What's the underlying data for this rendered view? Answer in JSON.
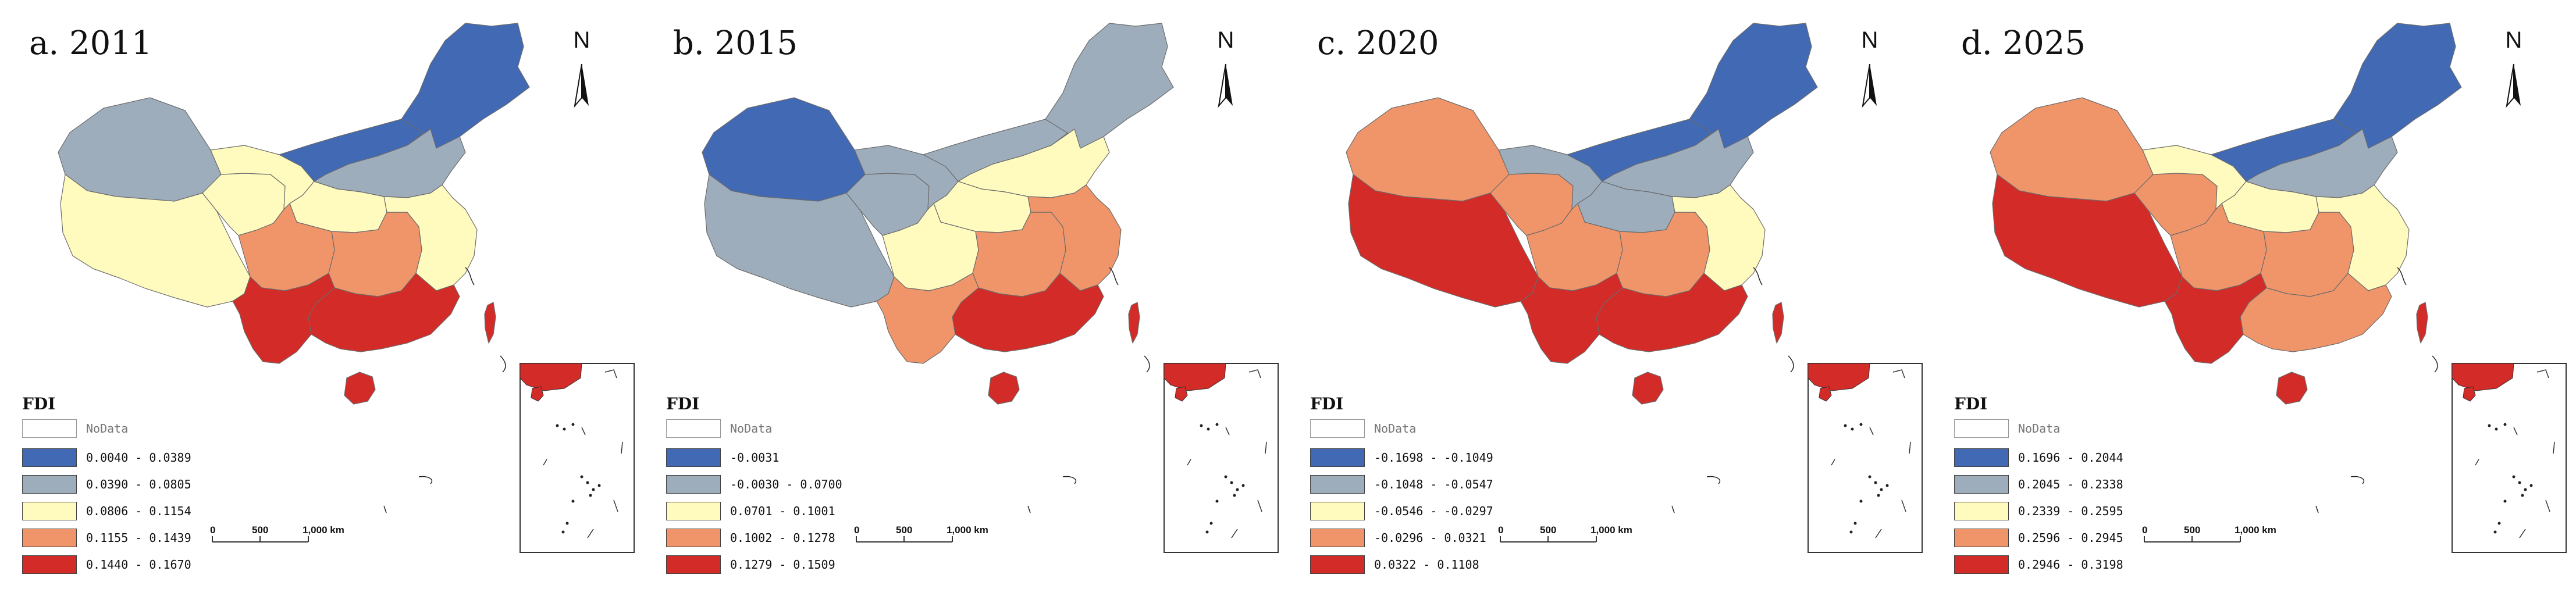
{
  "legend_title": "FDI",
  "nodata_label": "NoData",
  "scale_labels": [
    "0",
    "500",
    "1,000 km"
  ],
  "north_label": "N",
  "class_colors": [
    "#4169B4",
    "#9EADBC",
    "#FFFBBF",
    "#F0956A",
    "#D32B27"
  ],
  "nodata_color": "#FFFFFF",
  "panels": [
    {
      "title": "a. 2011",
      "legend": [
        "0.0040 - 0.0389",
        "0.0390 - 0.0805",
        "0.0806 - 0.1154",
        "0.1155 - 0.1439",
        "0.1440 - 0.1670"
      ],
      "regions": {
        "northeast": 0,
        "north": 1,
        "inner_mongolia": 0,
        "xinjiang": 1,
        "gansu": 2,
        "tibet": 2,
        "qinghai": 2,
        "shaanxi": 2,
        "sichuan": 3,
        "central": 3,
        "east": 2,
        "south": 4,
        "yunnan": 4,
        "hainan": 4,
        "taiwan": 4
      }
    },
    {
      "title": "b. 2015",
      "legend": [
        "-0.0031",
        "-0.0030 - 0.0700",
        "0.0701 - 0.1001",
        "0.1002 - 0.1278",
        "0.1279 - 0.1509"
      ],
      "regions": {
        "northeast": 1,
        "north": 2,
        "inner_mongolia": 1,
        "xinjiang": 0,
        "gansu": 1,
        "tibet": 1,
        "qinghai": 1,
        "shaanxi": 2,
        "sichuan": 2,
        "central": 3,
        "east": 3,
        "south": 4,
        "yunnan": 3,
        "hainan": 4,
        "taiwan": 4
      }
    },
    {
      "title": "c. 2020",
      "legend": [
        "-0.1698 - -0.1049",
        "-0.1048 - -0.0547",
        "-0.0546 - -0.0297",
        "-0.0296 - 0.0321",
        "0.0322 - 0.1108"
      ],
      "regions": {
        "northeast": 0,
        "north": 1,
        "inner_mongolia": 0,
        "xinjiang": 3,
        "gansu": 1,
        "tibet": 4,
        "qinghai": 3,
        "shaanxi": 1,
        "sichuan": 3,
        "central": 3,
        "east": 2,
        "south": 4,
        "yunnan": 4,
        "hainan": 4,
        "taiwan": 4
      }
    },
    {
      "title": "d. 2025",
      "legend": [
        "0.1696 - 0.2044",
        "0.2045 - 0.2338",
        "0.2339 - 0.2595",
        "0.2596 - 0.2945",
        "0.2946 - 0.3198"
      ],
      "regions": {
        "northeast": 0,
        "north": 1,
        "inner_mongolia": 0,
        "xinjiang": 3,
        "gansu": 2,
        "tibet": 4,
        "qinghai": 3,
        "shaanxi": 2,
        "sichuan": 3,
        "central": 3,
        "east": 2,
        "south": 3,
        "yunnan": 4,
        "hainan": 4,
        "taiwan": 4
      }
    }
  ]
}
